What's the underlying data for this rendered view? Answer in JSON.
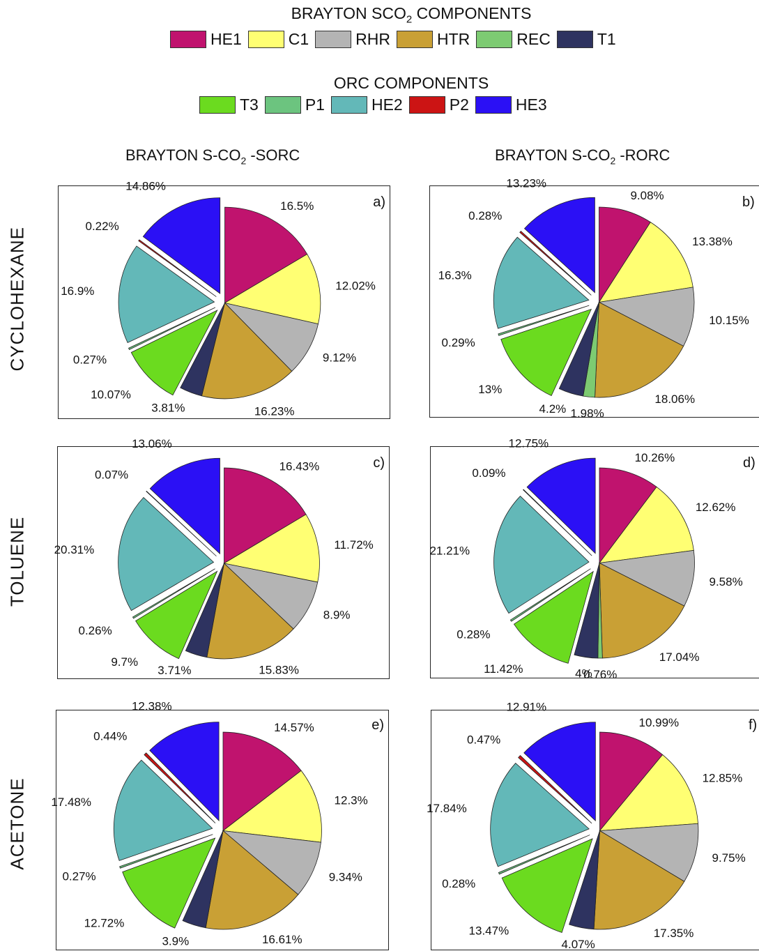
{
  "legends": {
    "brayton": {
      "title_main": "BRAYTON SCO",
      "title_sub": "2",
      "title_tail": " COMPONENTS",
      "items": [
        {
          "key": "HE1",
          "label": "HE1",
          "color": "#C0136E"
        },
        {
          "key": "C1",
          "label": "C1",
          "color": "#FFFF73"
        },
        {
          "key": "RHR",
          "label": "RHR",
          "color": "#B4B4B4"
        },
        {
          "key": "HTR",
          "label": "HTR",
          "color": "#C9A035"
        },
        {
          "key": "REC",
          "label": "REC",
          "color": "#7DCB72"
        },
        {
          "key": "T1",
          "label": "T1",
          "color": "#2E3360"
        }
      ]
    },
    "orc": {
      "title": "ORC COMPONENTS",
      "items": [
        {
          "key": "T3",
          "label": "T3",
          "color": "#6BDB1F"
        },
        {
          "key": "P1",
          "label": "P1",
          "color": "#6CC47F"
        },
        {
          "key": "HE2",
          "label": "HE2",
          "color": "#63B8B8"
        },
        {
          "key": "P2",
          "label": "P2",
          "color": "#CC1414"
        },
        {
          "key": "HE3",
          "label": "HE3",
          "color": "#2B10F5"
        }
      ]
    }
  },
  "columns": [
    {
      "pre": "BRAYTON S-CO",
      "sub": "2",
      "post": " -SORC"
    },
    {
      "pre": "BRAYTON S-CO",
      "sub": "2",
      "post": " -RORC"
    }
  ],
  "rows": [
    {
      "label": "CYCLOHEXANE"
    },
    {
      "label": "TOLUENE"
    },
    {
      "label": "ACETONE"
    }
  ],
  "chart_data": [
    {
      "type": "pie",
      "panel_tag": "a)",
      "fluid": "CYCLOHEXANE",
      "config": "BRAYTON S-CO2 -SORC",
      "slices": [
        {
          "component": "HE1",
          "value": 16.5,
          "label": "16.5%"
        },
        {
          "component": "C1",
          "value": 12.02,
          "label": "12.02%"
        },
        {
          "component": "RHR",
          "value": 9.12,
          "label": "9.12%"
        },
        {
          "component": "HTR",
          "value": 16.23,
          "label": "16.23%"
        },
        {
          "component": "T1",
          "value": 3.81,
          "label": "3.81%"
        },
        {
          "component": "T3",
          "value": 10.07,
          "label": "10.07%"
        },
        {
          "component": "P1",
          "value": 0.27,
          "label": "0.27%"
        },
        {
          "component": "HE2",
          "value": 16.9,
          "label": "16.9%"
        },
        {
          "component": "P2",
          "value": 0.22,
          "label": "0.22%"
        },
        {
          "component": "HE3",
          "value": 14.86,
          "label": "14.86%"
        }
      ]
    },
    {
      "type": "pie",
      "panel_tag": "b)",
      "fluid": "CYCLOHEXANE",
      "config": "BRAYTON S-CO2 -RORC",
      "slices": [
        {
          "component": "HE1",
          "value": 9.08,
          "label": "9.08%"
        },
        {
          "component": "C1",
          "value": 13.38,
          "label": "13.38%"
        },
        {
          "component": "RHR",
          "value": 10.15,
          "label": "10.15%"
        },
        {
          "component": "HTR",
          "value": 18.06,
          "label": "18.06%"
        },
        {
          "component": "REC",
          "value": 1.98,
          "label": "1.98%"
        },
        {
          "component": "T1",
          "value": 4.2,
          "label": "4.2%"
        },
        {
          "component": "T3",
          "value": 13,
          "label": "13%"
        },
        {
          "component": "P1",
          "value": 0.29,
          "label": "0.29%"
        },
        {
          "component": "HE2",
          "value": 16.3,
          "label": "16.3%"
        },
        {
          "component": "P2",
          "value": 0.28,
          "label": "0.28%"
        },
        {
          "component": "HE3",
          "value": 13.23,
          "label": "13.23%"
        }
      ]
    },
    {
      "type": "pie",
      "panel_tag": "c)",
      "fluid": "TOLUENE",
      "config": "BRAYTON S-CO2 -SORC",
      "slices": [
        {
          "component": "HE1",
          "value": 16.43,
          "label": "16.43%"
        },
        {
          "component": "C1",
          "value": 11.72,
          "label": "11.72%"
        },
        {
          "component": "RHR",
          "value": 8.9,
          "label": "8.9%"
        },
        {
          "component": "HTR",
          "value": 15.83,
          "label": "15.83%"
        },
        {
          "component": "T1",
          "value": 3.71,
          "label": "3.71%"
        },
        {
          "component": "T3",
          "value": 9.7,
          "label": "9.7%"
        },
        {
          "component": "P1",
          "value": 0.26,
          "label": "0.26%"
        },
        {
          "component": "HE2",
          "value": 20.31,
          "label": "20.31%"
        },
        {
          "component": "P2",
          "value": 0.07,
          "label": "0.07%"
        },
        {
          "component": "HE3",
          "value": 13.06,
          "label": "13.06%"
        }
      ]
    },
    {
      "type": "pie",
      "panel_tag": "d)",
      "fluid": "TOLUENE",
      "config": "BRAYTON S-CO2 -RORC",
      "slices": [
        {
          "component": "HE1",
          "value": 10.26,
          "label": "10.26%"
        },
        {
          "component": "C1",
          "value": 12.62,
          "label": "12.62%"
        },
        {
          "component": "RHR",
          "value": 9.58,
          "label": "9.58%"
        },
        {
          "component": "HTR",
          "value": 17.04,
          "label": "17.04%"
        },
        {
          "component": "REC",
          "value": 0.76,
          "label": "0.76%"
        },
        {
          "component": "T1",
          "value": 4,
          "label": "4%"
        },
        {
          "component": "T3",
          "value": 11.42,
          "label": "11.42%"
        },
        {
          "component": "P1",
          "value": 0.28,
          "label": "0.28%"
        },
        {
          "component": "HE2",
          "value": 21.21,
          "label": "21.21%"
        },
        {
          "component": "P2",
          "value": 0.09,
          "label": "0.09%"
        },
        {
          "component": "HE3",
          "value": 12.75,
          "label": "12.75%"
        }
      ]
    },
    {
      "type": "pie",
      "panel_tag": "e)",
      "fluid": "ACETONE",
      "config": "BRAYTON S-CO2 -SORC",
      "slices": [
        {
          "component": "HE1",
          "value": 14.57,
          "label": "14.57%"
        },
        {
          "component": "C1",
          "value": 12.3,
          "label": "12.3%"
        },
        {
          "component": "RHR",
          "value": 9.34,
          "label": "9.34%"
        },
        {
          "component": "HTR",
          "value": 16.61,
          "label": "16.61%"
        },
        {
          "component": "T1",
          "value": 3.9,
          "label": "3.9%"
        },
        {
          "component": "T3",
          "value": 12.72,
          "label": "12.72%"
        },
        {
          "component": "P1",
          "value": 0.27,
          "label": "0.27%"
        },
        {
          "component": "HE2",
          "value": 17.48,
          "label": "17.48%"
        },
        {
          "component": "P2",
          "value": 0.44,
          "label": "0.44%"
        },
        {
          "component": "HE3",
          "value": 12.38,
          "label": "12.38%"
        }
      ]
    },
    {
      "type": "pie",
      "panel_tag": "f)",
      "fluid": "ACETONE",
      "config": "BRAYTON S-CO2 -RORC",
      "slices": [
        {
          "component": "HE1",
          "value": 10.99,
          "label": "10.99%"
        },
        {
          "component": "C1",
          "value": 12.85,
          "label": "12.85%"
        },
        {
          "component": "RHR",
          "value": 9.75,
          "label": "9.75%"
        },
        {
          "component": "HTR",
          "value": 17.35,
          "label": "17.35%"
        },
        {
          "component": "T1",
          "value": 4.07,
          "label": "4.07%"
        },
        {
          "component": "T3",
          "value": 13.47,
          "label": "13.47%"
        },
        {
          "component": "P1",
          "value": 0.28,
          "label": "0.28%"
        },
        {
          "component": "HE2",
          "value": 17.84,
          "label": "17.84%"
        },
        {
          "component": "P2",
          "value": 0.47,
          "label": "0.47%"
        },
        {
          "component": "HE3",
          "value": 12.91,
          "label": "12.91%"
        }
      ]
    }
  ]
}
